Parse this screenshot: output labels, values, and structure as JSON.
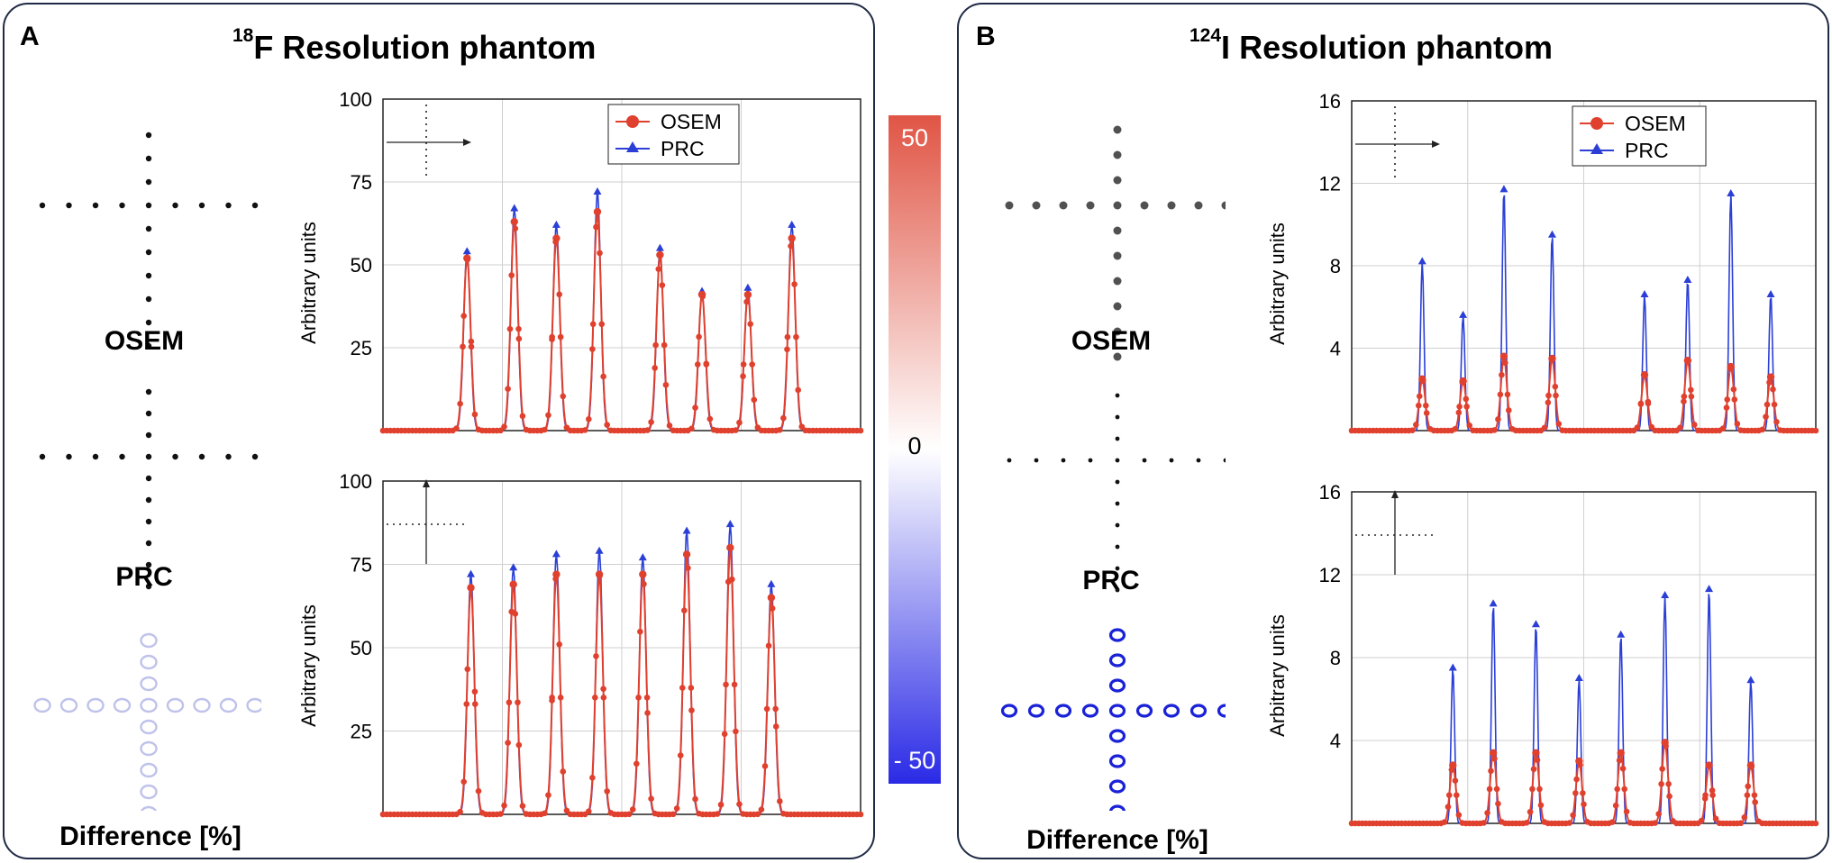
{
  "colors": {
    "osem": "#e0402e",
    "prc": "#2b3fd6",
    "frame": "#1f2a44"
  },
  "panels": [
    {
      "letter": "A",
      "isotope_mass": "18",
      "isotope_symbol": "F",
      "title_rest": " Resolution phantom",
      "image_labels": {
        "osem": "OSEM",
        "prc": "PRC",
        "difference": "Difference [%]"
      }
    },
    {
      "letter": "B",
      "isotope_mass": "124",
      "isotope_symbol": "I",
      "title_rest": " Resolution phantom",
      "image_labels": {
        "osem": "OSEM",
        "prc": "PRC",
        "difference": "Difference [%]"
      }
    }
  ],
  "colorbar": {
    "max_label": "50",
    "mid_label": "0",
    "min_label": "- 50",
    "range": [
      -50,
      50
    ]
  },
  "chart_data": [
    {
      "type": "line",
      "id": "A-horizontal",
      "title": "",
      "xlabel": "",
      "ylabel": "Arbitrary units",
      "ylim": [
        0,
        100
      ],
      "yticks": [
        25,
        50,
        75,
        100
      ],
      "profile": "horizontal",
      "legend": [
        "OSEM",
        "PRC"
      ],
      "legend_position": "top-center",
      "x": [
        0.176,
        0.275,
        0.363,
        0.449,
        0.58,
        0.668,
        0.764,
        0.856
      ],
      "series": [
        {
          "name": "OSEM",
          "values": [
            52,
            63,
            58,
            66,
            53,
            41,
            41,
            58
          ]
        },
        {
          "name": "PRC",
          "values": [
            54,
            67,
            62,
            72,
            55,
            42,
            43,
            62
          ]
        }
      ]
    },
    {
      "type": "line",
      "id": "A-vertical",
      "title": "",
      "xlabel": "",
      "ylabel": "Arbitrary units",
      "ylim": [
        0,
        100
      ],
      "yticks": [
        25,
        50,
        75,
        100
      ],
      "profile": "vertical",
      "x": [
        0.184,
        0.273,
        0.363,
        0.453,
        0.544,
        0.636,
        0.727,
        0.813
      ],
      "series": [
        {
          "name": "OSEM",
          "values": [
            68,
            69,
            72,
            72,
            72,
            78,
            80,
            65
          ]
        },
        {
          "name": "PRC",
          "values": [
            72,
            74,
            78,
            79,
            77,
            85,
            87,
            69
          ]
        }
      ]
    },
    {
      "type": "line",
      "id": "B-horizontal",
      "title": "",
      "xlabel": "",
      "ylabel": "Arbitrary units",
      "ylim": [
        0,
        16
      ],
      "yticks": [
        4,
        8,
        12,
        16
      ],
      "profile": "horizontal",
      "legend": [
        "OSEM",
        "PRC"
      ],
      "legend_position": "top-center",
      "x": [
        0.152,
        0.24,
        0.328,
        0.432,
        0.631,
        0.724,
        0.817,
        0.903
      ],
      "series": [
        {
          "name": "OSEM",
          "values": [
            2.5,
            2.4,
            3.6,
            3.5,
            2.7,
            3.4,
            3.1,
            2.6
          ]
        },
        {
          "name": "PRC",
          "values": [
            8.2,
            5.6,
            11.7,
            9.5,
            6.6,
            7.3,
            11.5,
            6.6
          ]
        }
      ]
    },
    {
      "type": "line",
      "id": "B-vertical",
      "title": "",
      "xlabel": "",
      "ylabel": "Arbitrary units",
      "ylim": [
        0,
        16
      ],
      "yticks": [
        4,
        8,
        12,
        16
      ],
      "profile": "vertical",
      "x": [
        0.218,
        0.305,
        0.397,
        0.49,
        0.58,
        0.675,
        0.77,
        0.86
      ],
      "series": [
        {
          "name": "OSEM",
          "values": [
            2.8,
            3.4,
            3.4,
            3.0,
            3.4,
            3.9,
            2.8,
            2.8
          ]
        },
        {
          "name": "PRC",
          "values": [
            7.5,
            10.6,
            9.6,
            7.0,
            9.1,
            11.0,
            11.3,
            6.9
          ]
        }
      ]
    }
  ]
}
